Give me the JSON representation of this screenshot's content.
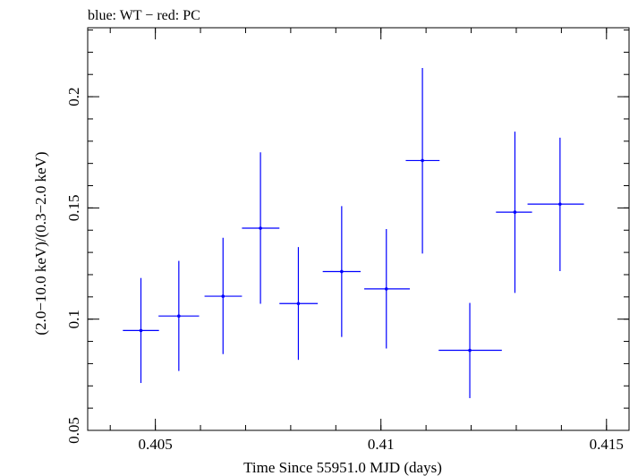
{
  "chart_data": {
    "type": "scatter",
    "title": "blue: WT − red: PC",
    "xlabel": "Time Since 55951.0 MJD (days)",
    "ylabel": "(2.0−10.0 keV)/(0.3−2.0 keV)",
    "xlim": [
      0.4035,
      0.4155
    ],
    "ylim": [
      0.05,
      0.231
    ],
    "xticks": [
      0.405,
      0.41,
      0.415
    ],
    "xtick_labels": [
      "0.405",
      "0.41",
      "0.415"
    ],
    "yticks": [
      0.05,
      0.1,
      0.15,
      0.2
    ],
    "ytick_labels": [
      "0.05",
      "0.1",
      "0.15",
      "0.2"
    ],
    "x_minor_step": 0.001,
    "y_minor_step": 0.01,
    "grid": false,
    "colors": {
      "WT": "#0000ff",
      "PC": "#ff0000",
      "axes": "#000000"
    },
    "series": [
      {
        "name": "WT",
        "color": "#0000ff",
        "points": [
          {
            "x": 0.40468,
            "y": 0.0949,
            "xerr": [
              0.40428,
              0.40508
            ],
            "yerr": [
              0.0713,
              0.1185
            ]
          },
          {
            "x": 0.40552,
            "y": 0.1014,
            "xerr": [
              0.40507,
              0.40597
            ],
            "yerr": [
              0.0767,
              0.1262
            ]
          },
          {
            "x": 0.4065,
            "y": 0.1103,
            "xerr": [
              0.40609,
              0.40692
            ],
            "yerr": [
              0.0843,
              0.1366
            ]
          },
          {
            "x": 0.40733,
            "y": 0.1409,
            "xerr": [
              0.40692,
              0.40775
            ],
            "yerr": [
              0.1069,
              0.175
            ]
          },
          {
            "x": 0.40817,
            "y": 0.107,
            "xerr": [
              0.40775,
              0.4086
            ],
            "yerr": [
              0.0817,
              0.1324
            ]
          },
          {
            "x": 0.40913,
            "y": 0.1214,
            "xerr": [
              0.40871,
              0.40955
            ],
            "yerr": [
              0.092,
              0.1508
            ]
          },
          {
            "x": 0.41012,
            "y": 0.1136,
            "xerr": [
              0.40963,
              0.41064
            ],
            "yerr": [
              0.0868,
              0.1405
            ]
          },
          {
            "x": 0.41092,
            "y": 0.1713,
            "xerr": [
              0.41055,
              0.4113
            ],
            "yerr": [
              0.1295,
              0.2129
            ]
          },
          {
            "x": 0.41197,
            "y": 0.086,
            "xerr": [
              0.41128,
              0.41268
            ],
            "yerr": [
              0.0645,
              0.1073
            ]
          },
          {
            "x": 0.41297,
            "y": 0.1481,
            "xerr": [
              0.41255,
              0.41335
            ],
            "yerr": [
              0.1118,
              0.1843
            ]
          },
          {
            "x": 0.41397,
            "y": 0.1517,
            "xerr": [
              0.41325,
              0.4145
            ],
            "yerr": [
              0.1216,
              0.1816
            ]
          }
        ]
      }
    ]
  }
}
